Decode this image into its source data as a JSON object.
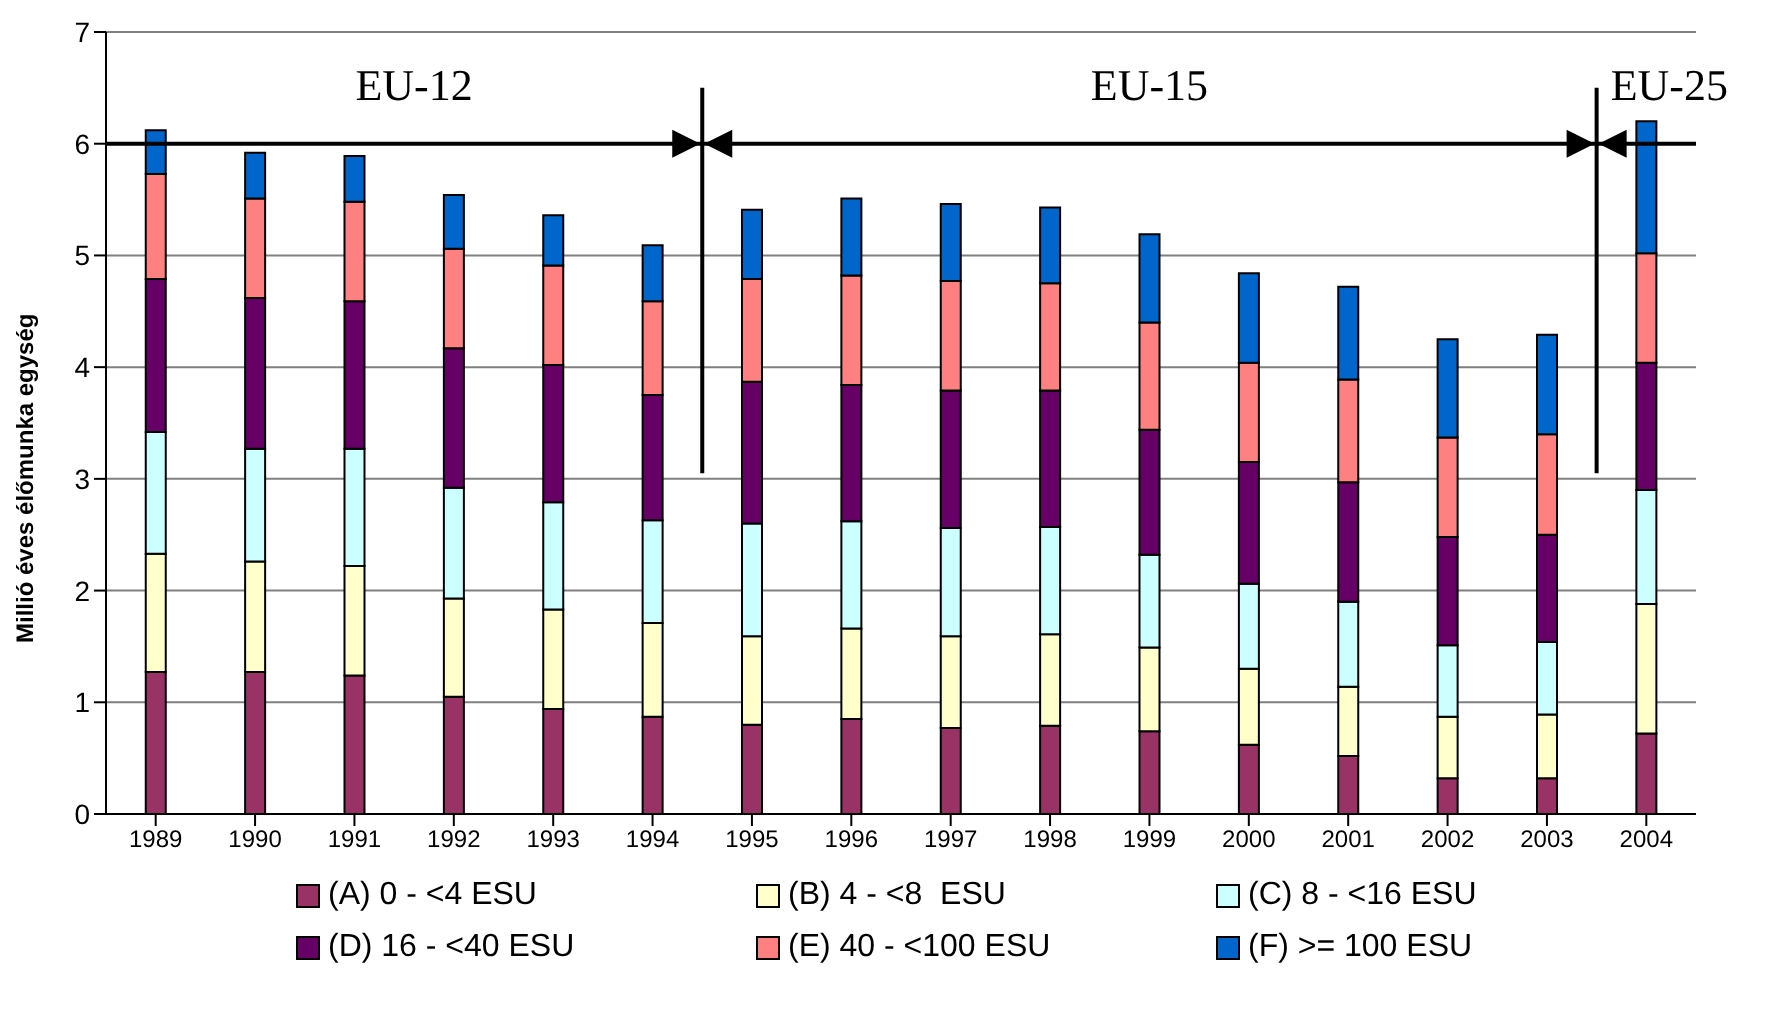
{
  "chart_data": {
    "type": "bar",
    "stacked": true,
    "ylabel": "Millió éves élőmunka egység",
    "categories": [
      "1989",
      "1990",
      "1991",
      "1992",
      "1993",
      "1994",
      "1995",
      "1996",
      "1997",
      "1998",
      "1999",
      "2000",
      "2001",
      "2002",
      "2003",
      "2004"
    ],
    "series": [
      {
        "name": "(A) 0 - <4 ESU",
        "color": "#993366",
        "values": [
          1.27,
          1.27,
          1.24,
          1.05,
          0.94,
          0.87,
          0.8,
          0.85,
          0.77,
          0.79,
          0.74,
          0.62,
          0.52,
          0.32,
          0.32,
          0.72
        ]
      },
      {
        "name": "(B) 4 - <8  ESU",
        "color": "#ffffcc",
        "values": [
          1.06,
          0.99,
          0.98,
          0.88,
          0.89,
          0.84,
          0.79,
          0.81,
          0.82,
          0.82,
          0.75,
          0.68,
          0.62,
          0.55,
          0.57,
          1.16
        ]
      },
      {
        "name": "(C) 8 - <16 ESU",
        "color": "#ccffff",
        "values": [
          1.09,
          1.01,
          1.05,
          0.99,
          0.96,
          0.92,
          1.01,
          0.96,
          0.97,
          0.96,
          0.83,
          0.76,
          0.76,
          0.64,
          0.65,
          1.02
        ]
      },
      {
        "name": "(D) 16 - <40 ESU",
        "color": "#660066",
        "values": [
          1.37,
          1.35,
          1.32,
          1.25,
          1.23,
          1.12,
          1.27,
          1.22,
          1.23,
          1.22,
          1.12,
          1.09,
          1.07,
          0.97,
          0.96,
          1.14
        ]
      },
      {
        "name": "(E) 40 - <100 ESU",
        "color": "#ff8080",
        "values": [
          0.94,
          0.89,
          0.89,
          0.89,
          0.89,
          0.84,
          0.92,
          0.98,
          0.98,
          0.96,
          0.96,
          0.89,
          0.92,
          0.89,
          0.9,
          0.98
        ]
      },
      {
        "name": "(F) >= 100 ESU",
        "color": "#0066cc",
        "values": [
          0.39,
          0.41,
          0.41,
          0.48,
          0.45,
          0.5,
          0.62,
          0.69,
          0.69,
          0.68,
          0.79,
          0.8,
          0.83,
          0.88,
          0.89,
          1.18
        ]
      }
    ],
    "ref_lines": [
      {
        "axis": "y",
        "value": 6,
        "color": "#000000"
      }
    ],
    "ylim": [
      0,
      7
    ],
    "yticks": [
      0,
      1,
      2,
      3,
      4,
      5,
      6,
      7
    ],
    "grid": "y",
    "legend": "bottom",
    "annotations": [
      "EU-12",
      "EU-15",
      "EU-25"
    ]
  }
}
